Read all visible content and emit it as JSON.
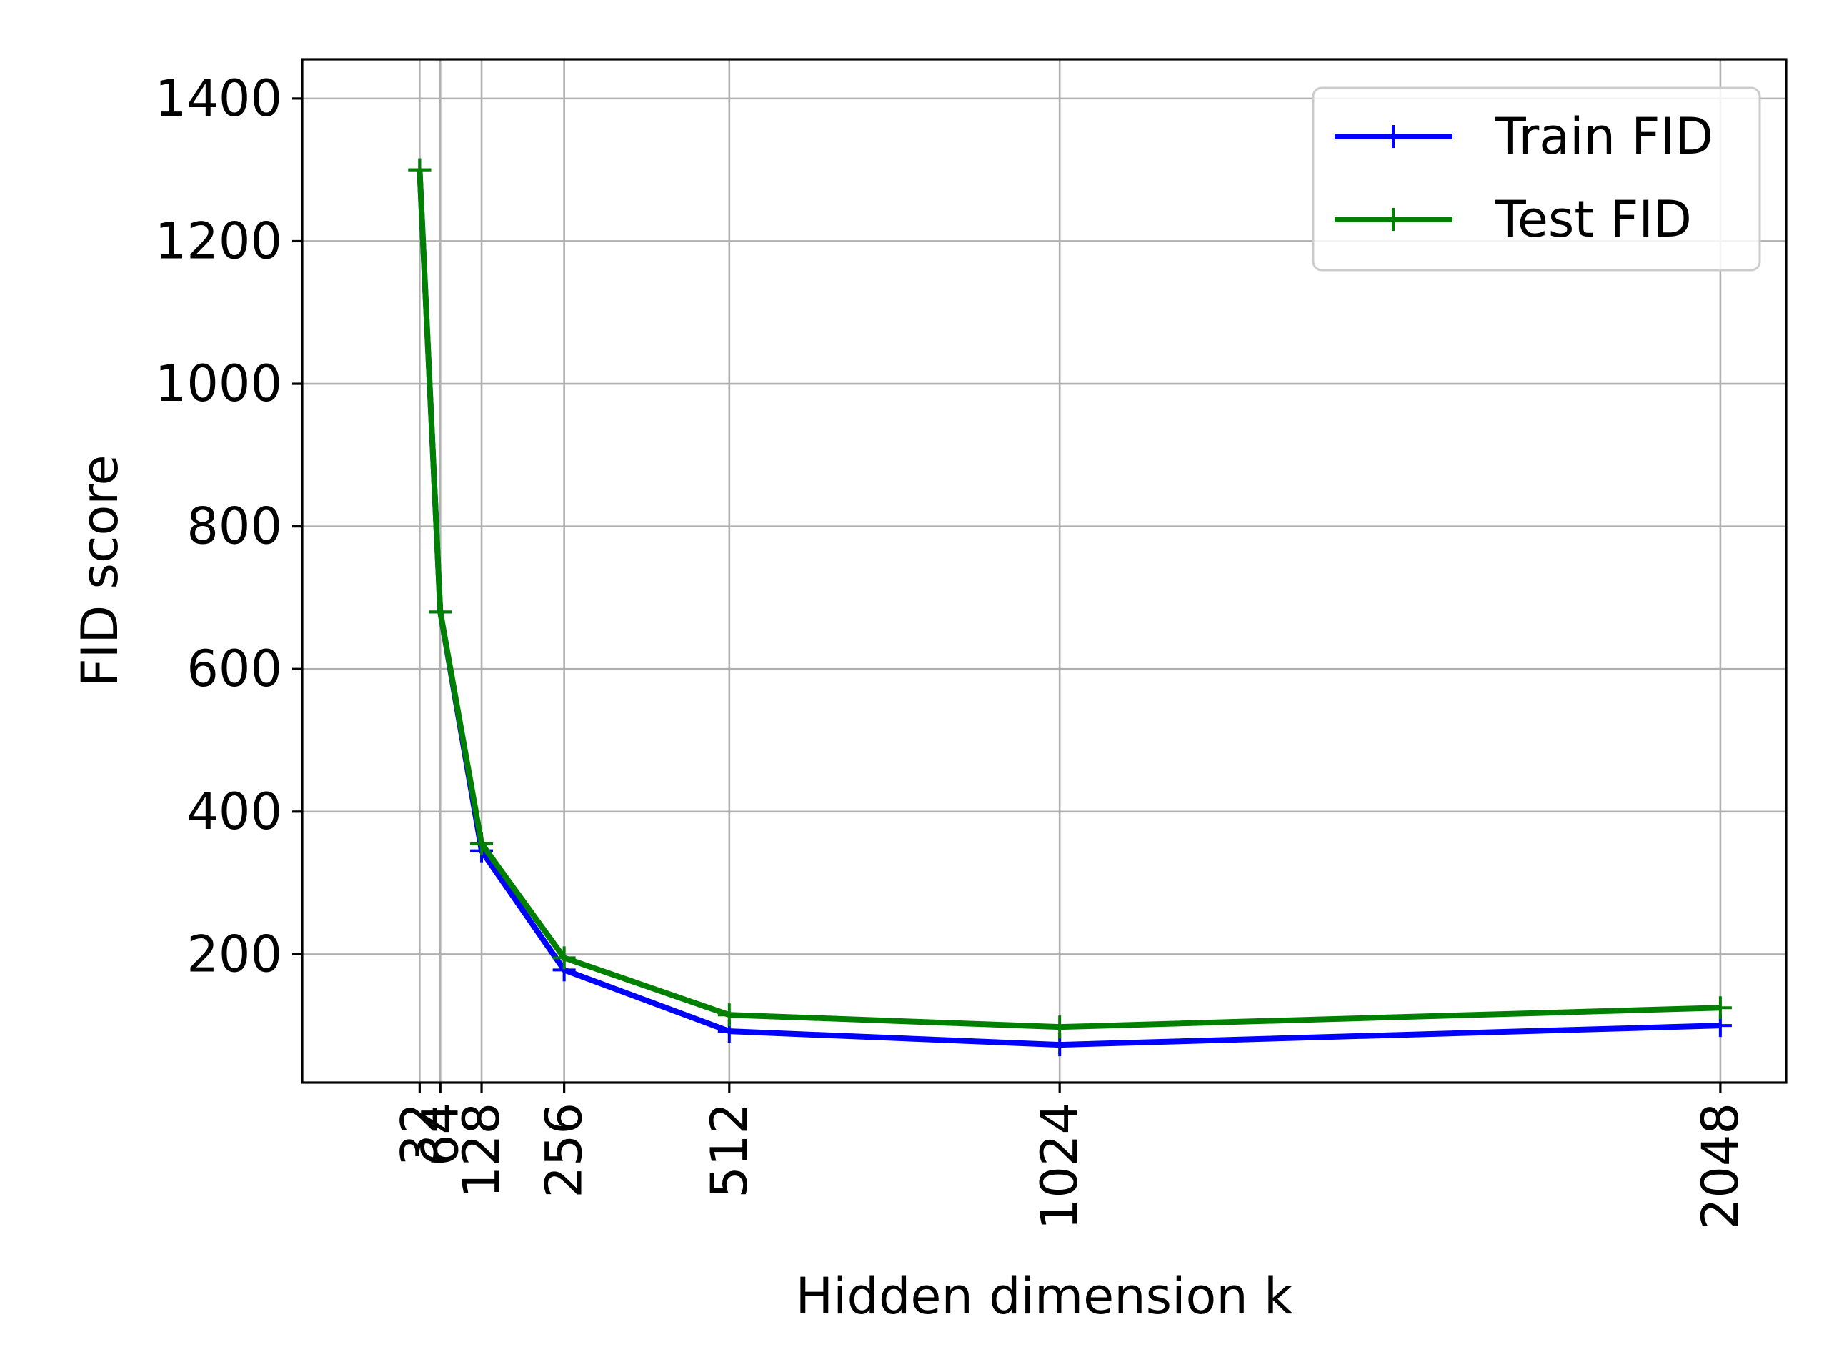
{
  "chart_data": {
    "type": "line",
    "title": "",
    "xlabel": "Hidden dimension k",
    "ylabel": "FID score",
    "x": [
      32,
      64,
      128,
      256,
      512,
      1024,
      2048
    ],
    "x_tick_labels": [
      "32",
      "64",
      "128",
      "256",
      "512",
      "1024",
      "2048"
    ],
    "x_tick_rotation": 90,
    "y_ticks": [
      200,
      400,
      600,
      800,
      1000,
      1200,
      1400
    ],
    "y_tick_labels": [
      "200",
      "400",
      "600",
      "800",
      "1000",
      "1200",
      "1400"
    ],
    "xlim": [
      -150,
      2150
    ],
    "ylim": [
      20,
      1455
    ],
    "grid": true,
    "legend_position": "top-right",
    "series": [
      {
        "name": "Train FID",
        "color": "#0000ff",
        "marker": "+",
        "values": [
          1300,
          680,
          345,
          178,
          92,
          73,
          100
        ]
      },
      {
        "name": "Test FID",
        "color": "#008000",
        "marker": "+",
        "values": [
          1300,
          680,
          355,
          195,
          115,
          98,
          125
        ]
      }
    ]
  }
}
